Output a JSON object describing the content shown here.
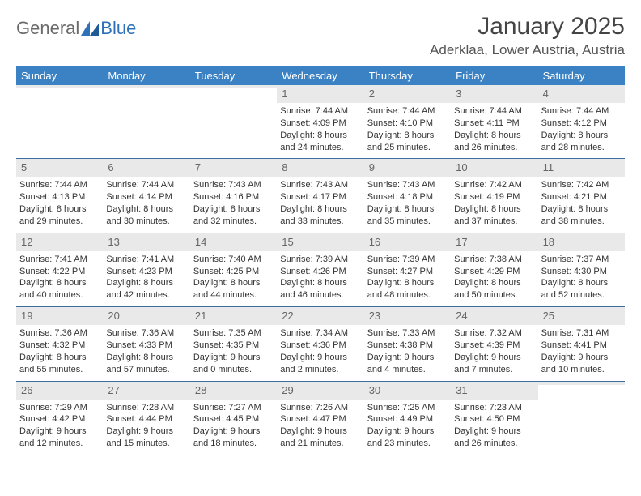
{
  "logo": {
    "general": "General",
    "blue": "Blue"
  },
  "title": {
    "month": "January 2025",
    "location": "Aderklaa, Lower Austria, Austria"
  },
  "colors": {
    "header_bg": "#3b82c4",
    "day_num_bg": "#e9e9e9",
    "week_border": "#3b6fa0",
    "logo_gray": "#6b6b6b",
    "logo_blue": "#2f71b8"
  },
  "weekdays": [
    "Sunday",
    "Monday",
    "Tuesday",
    "Wednesday",
    "Thursday",
    "Friday",
    "Saturday"
  ],
  "weeks": [
    [
      {
        "empty": true
      },
      {
        "empty": true
      },
      {
        "empty": true
      },
      {
        "num": "1",
        "sunrise": "Sunrise: 7:44 AM",
        "sunset": "Sunset: 4:09 PM",
        "daylight1": "Daylight: 8 hours",
        "daylight2": "and 24 minutes."
      },
      {
        "num": "2",
        "sunrise": "Sunrise: 7:44 AM",
        "sunset": "Sunset: 4:10 PM",
        "daylight1": "Daylight: 8 hours",
        "daylight2": "and 25 minutes."
      },
      {
        "num": "3",
        "sunrise": "Sunrise: 7:44 AM",
        "sunset": "Sunset: 4:11 PM",
        "daylight1": "Daylight: 8 hours",
        "daylight2": "and 26 minutes."
      },
      {
        "num": "4",
        "sunrise": "Sunrise: 7:44 AM",
        "sunset": "Sunset: 4:12 PM",
        "daylight1": "Daylight: 8 hours",
        "daylight2": "and 28 minutes."
      }
    ],
    [
      {
        "num": "5",
        "sunrise": "Sunrise: 7:44 AM",
        "sunset": "Sunset: 4:13 PM",
        "daylight1": "Daylight: 8 hours",
        "daylight2": "and 29 minutes."
      },
      {
        "num": "6",
        "sunrise": "Sunrise: 7:44 AM",
        "sunset": "Sunset: 4:14 PM",
        "daylight1": "Daylight: 8 hours",
        "daylight2": "and 30 minutes."
      },
      {
        "num": "7",
        "sunrise": "Sunrise: 7:43 AM",
        "sunset": "Sunset: 4:16 PM",
        "daylight1": "Daylight: 8 hours",
        "daylight2": "and 32 minutes."
      },
      {
        "num": "8",
        "sunrise": "Sunrise: 7:43 AM",
        "sunset": "Sunset: 4:17 PM",
        "daylight1": "Daylight: 8 hours",
        "daylight2": "and 33 minutes."
      },
      {
        "num": "9",
        "sunrise": "Sunrise: 7:43 AM",
        "sunset": "Sunset: 4:18 PM",
        "daylight1": "Daylight: 8 hours",
        "daylight2": "and 35 minutes."
      },
      {
        "num": "10",
        "sunrise": "Sunrise: 7:42 AM",
        "sunset": "Sunset: 4:19 PM",
        "daylight1": "Daylight: 8 hours",
        "daylight2": "and 37 minutes."
      },
      {
        "num": "11",
        "sunrise": "Sunrise: 7:42 AM",
        "sunset": "Sunset: 4:21 PM",
        "daylight1": "Daylight: 8 hours",
        "daylight2": "and 38 minutes."
      }
    ],
    [
      {
        "num": "12",
        "sunrise": "Sunrise: 7:41 AM",
        "sunset": "Sunset: 4:22 PM",
        "daylight1": "Daylight: 8 hours",
        "daylight2": "and 40 minutes."
      },
      {
        "num": "13",
        "sunrise": "Sunrise: 7:41 AM",
        "sunset": "Sunset: 4:23 PM",
        "daylight1": "Daylight: 8 hours",
        "daylight2": "and 42 minutes."
      },
      {
        "num": "14",
        "sunrise": "Sunrise: 7:40 AM",
        "sunset": "Sunset: 4:25 PM",
        "daylight1": "Daylight: 8 hours",
        "daylight2": "and 44 minutes."
      },
      {
        "num": "15",
        "sunrise": "Sunrise: 7:39 AM",
        "sunset": "Sunset: 4:26 PM",
        "daylight1": "Daylight: 8 hours",
        "daylight2": "and 46 minutes."
      },
      {
        "num": "16",
        "sunrise": "Sunrise: 7:39 AM",
        "sunset": "Sunset: 4:27 PM",
        "daylight1": "Daylight: 8 hours",
        "daylight2": "and 48 minutes."
      },
      {
        "num": "17",
        "sunrise": "Sunrise: 7:38 AM",
        "sunset": "Sunset: 4:29 PM",
        "daylight1": "Daylight: 8 hours",
        "daylight2": "and 50 minutes."
      },
      {
        "num": "18",
        "sunrise": "Sunrise: 7:37 AM",
        "sunset": "Sunset: 4:30 PM",
        "daylight1": "Daylight: 8 hours",
        "daylight2": "and 52 minutes."
      }
    ],
    [
      {
        "num": "19",
        "sunrise": "Sunrise: 7:36 AM",
        "sunset": "Sunset: 4:32 PM",
        "daylight1": "Daylight: 8 hours",
        "daylight2": "and 55 minutes."
      },
      {
        "num": "20",
        "sunrise": "Sunrise: 7:36 AM",
        "sunset": "Sunset: 4:33 PM",
        "daylight1": "Daylight: 8 hours",
        "daylight2": "and 57 minutes."
      },
      {
        "num": "21",
        "sunrise": "Sunrise: 7:35 AM",
        "sunset": "Sunset: 4:35 PM",
        "daylight1": "Daylight: 9 hours",
        "daylight2": "and 0 minutes."
      },
      {
        "num": "22",
        "sunrise": "Sunrise: 7:34 AM",
        "sunset": "Sunset: 4:36 PM",
        "daylight1": "Daylight: 9 hours",
        "daylight2": "and 2 minutes."
      },
      {
        "num": "23",
        "sunrise": "Sunrise: 7:33 AM",
        "sunset": "Sunset: 4:38 PM",
        "daylight1": "Daylight: 9 hours",
        "daylight2": "and 4 minutes."
      },
      {
        "num": "24",
        "sunrise": "Sunrise: 7:32 AM",
        "sunset": "Sunset: 4:39 PM",
        "daylight1": "Daylight: 9 hours",
        "daylight2": "and 7 minutes."
      },
      {
        "num": "25",
        "sunrise": "Sunrise: 7:31 AM",
        "sunset": "Sunset: 4:41 PM",
        "daylight1": "Daylight: 9 hours",
        "daylight2": "and 10 minutes."
      }
    ],
    [
      {
        "num": "26",
        "sunrise": "Sunrise: 7:29 AM",
        "sunset": "Sunset: 4:42 PM",
        "daylight1": "Daylight: 9 hours",
        "daylight2": "and 12 minutes."
      },
      {
        "num": "27",
        "sunrise": "Sunrise: 7:28 AM",
        "sunset": "Sunset: 4:44 PM",
        "daylight1": "Daylight: 9 hours",
        "daylight2": "and 15 minutes."
      },
      {
        "num": "28",
        "sunrise": "Sunrise: 7:27 AM",
        "sunset": "Sunset: 4:45 PM",
        "daylight1": "Daylight: 9 hours",
        "daylight2": "and 18 minutes."
      },
      {
        "num": "29",
        "sunrise": "Sunrise: 7:26 AM",
        "sunset": "Sunset: 4:47 PM",
        "daylight1": "Daylight: 9 hours",
        "daylight2": "and 21 minutes."
      },
      {
        "num": "30",
        "sunrise": "Sunrise: 7:25 AM",
        "sunset": "Sunset: 4:49 PM",
        "daylight1": "Daylight: 9 hours",
        "daylight2": "and 23 minutes."
      },
      {
        "num": "31",
        "sunrise": "Sunrise: 7:23 AM",
        "sunset": "Sunset: 4:50 PM",
        "daylight1": "Daylight: 9 hours",
        "daylight2": "and 26 minutes."
      },
      {
        "empty": true
      }
    ]
  ]
}
